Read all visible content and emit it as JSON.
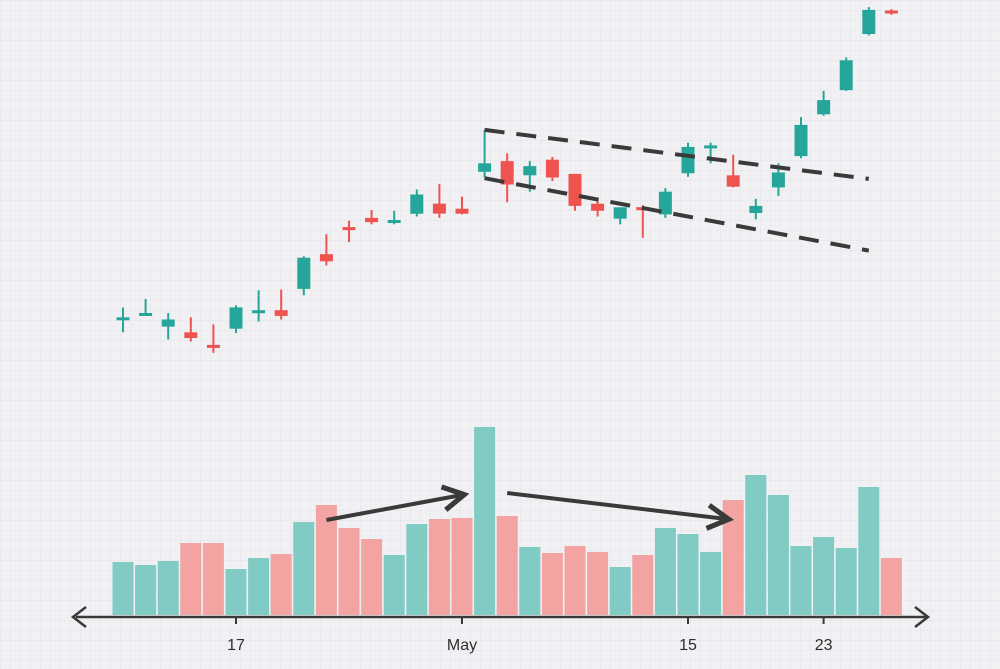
{
  "chart_data": {
    "type": "candlestick",
    "colors": {
      "up": "#26a69a",
      "down": "#ef5350",
      "up_volume": "#80cbc4",
      "down_volume": "#f4a3a3",
      "trendline": "#3a3a3a",
      "axis": "#3a3a3a",
      "grid": "#dcdce4",
      "background": "#f1f1f4"
    },
    "x_ticks": [
      {
        "label": "17",
        "index": 5
      },
      {
        "label": "May",
        "index": 15
      },
      {
        "label": "15",
        "index": 25
      },
      {
        "label": "23",
        "index": 31
      }
    ],
    "candles": [
      {
        "open": 52.4,
        "high": 54.0,
        "low": 50.5,
        "close": 52.4,
        "dir": "up"
      },
      {
        "open": 53.0,
        "high": 55.2,
        "low": 53.0,
        "close": 53.0,
        "dir": "up"
      },
      {
        "open": 51.3,
        "high": 53.2,
        "low": 49.5,
        "close": 52.3,
        "dir": "up"
      },
      {
        "open": 50.5,
        "high": 52.6,
        "low": 49.2,
        "close": 49.7,
        "dir": "down"
      },
      {
        "open": 48.5,
        "high": 51.6,
        "low": 47.6,
        "close": 48.5,
        "dir": "down"
      },
      {
        "open": 51.0,
        "high": 54.3,
        "low": 50.4,
        "close": 54.0,
        "dir": "up"
      },
      {
        "open": 53.4,
        "high": 56.4,
        "low": 52.0,
        "close": 53.4,
        "dir": "up"
      },
      {
        "open": 53.6,
        "high": 56.5,
        "low": 52.3,
        "close": 52.8,
        "dir": "down"
      },
      {
        "open": 56.6,
        "high": 61.2,
        "low": 55.7,
        "close": 61.0,
        "dir": "up"
      },
      {
        "open": 61.5,
        "high": 64.3,
        "low": 59.9,
        "close": 60.5,
        "dir": "down"
      },
      {
        "open": 65.1,
        "high": 66.2,
        "low": 63.2,
        "close": 65.1,
        "dir": "down"
      },
      {
        "open": 66.6,
        "high": 67.7,
        "low": 65.7,
        "close": 66.0,
        "dir": "down"
      },
      {
        "open": 66.1,
        "high": 67.6,
        "low": 65.7,
        "close": 66.1,
        "dir": "up"
      },
      {
        "open": 67.2,
        "high": 70.6,
        "low": 66.8,
        "close": 69.9,
        "dir": "up"
      },
      {
        "open": 68.6,
        "high": 71.4,
        "low": 66.6,
        "close": 67.2,
        "dir": "down"
      },
      {
        "open": 67.9,
        "high": 69.6,
        "low": 67.1,
        "close": 67.2,
        "dir": "down"
      },
      {
        "open": 73.1,
        "high": 79.0,
        "low": 72.3,
        "close": 74.3,
        "dir": "up"
      },
      {
        "open": 74.6,
        "high": 75.7,
        "low": 68.8,
        "close": 71.3,
        "dir": "down"
      },
      {
        "open": 72.6,
        "high": 74.6,
        "low": 70.3,
        "close": 73.9,
        "dir": "up"
      },
      {
        "open": 74.8,
        "high": 75.2,
        "low": 71.8,
        "close": 72.3,
        "dir": "down"
      },
      {
        "open": 72.8,
        "high": 72.8,
        "low": 67.6,
        "close": 68.3,
        "dir": "down"
      },
      {
        "open": 68.6,
        "high": 69.1,
        "low": 66.8,
        "close": 67.6,
        "dir": "down"
      },
      {
        "open": 66.5,
        "high": 68.1,
        "low": 65.7,
        "close": 68.1,
        "dir": "up"
      },
      {
        "open": 67.9,
        "high": 68.4,
        "low": 63.8,
        "close": 67.9,
        "dir": "down"
      },
      {
        "open": 67.1,
        "high": 70.8,
        "low": 66.6,
        "close": 70.3,
        "dir": "up"
      },
      {
        "open": 72.9,
        "high": 77.2,
        "low": 72.4,
        "close": 76.6,
        "dir": "up"
      },
      {
        "open": 76.6,
        "high": 77.2,
        "low": 74.3,
        "close": 76.6,
        "dir": "up"
      },
      {
        "open": 72.6,
        "high": 75.5,
        "low": 70.9,
        "close": 71.0,
        "dir": "down"
      },
      {
        "open": 67.3,
        "high": 69.3,
        "low": 66.4,
        "close": 68.3,
        "dir": "up"
      },
      {
        "open": 70.9,
        "high": 74.3,
        "low": 69.7,
        "close": 73.0,
        "dir": "up"
      },
      {
        "open": 75.3,
        "high": 80.8,
        "low": 75.0,
        "close": 79.7,
        "dir": "up"
      },
      {
        "open": 81.2,
        "high": 84.5,
        "low": 81.0,
        "close": 83.2,
        "dir": "up"
      },
      {
        "open": 84.6,
        "high": 89.2,
        "low": 84.5,
        "close": 88.8,
        "dir": "up"
      },
      {
        "open": 92.5,
        "high": 96.3,
        "low": 92.3,
        "close": 95.9,
        "dir": "up"
      },
      {
        "open": 95.6,
        "high": 96.0,
        "low": 95.2,
        "close": 95.6,
        "dir": "down"
      }
    ],
    "volume": [
      {
        "value": 53,
        "dir": "up"
      },
      {
        "value": 50,
        "dir": "up"
      },
      {
        "value": 54,
        "dir": "up"
      },
      {
        "value": 72,
        "dir": "down"
      },
      {
        "value": 72,
        "dir": "down"
      },
      {
        "value": 46,
        "dir": "up"
      },
      {
        "value": 57,
        "dir": "up"
      },
      {
        "value": 61,
        "dir": "down"
      },
      {
        "value": 93,
        "dir": "up"
      },
      {
        "value": 110,
        "dir": "down"
      },
      {
        "value": 87,
        "dir": "down"
      },
      {
        "value": 76,
        "dir": "down"
      },
      {
        "value": 60,
        "dir": "up"
      },
      {
        "value": 91,
        "dir": "up"
      },
      {
        "value": 96,
        "dir": "down"
      },
      {
        "value": 97,
        "dir": "down"
      },
      {
        "value": 188,
        "dir": "up"
      },
      {
        "value": 99,
        "dir": "down"
      },
      {
        "value": 68,
        "dir": "up"
      },
      {
        "value": 62,
        "dir": "down"
      },
      {
        "value": 69,
        "dir": "down"
      },
      {
        "value": 63,
        "dir": "down"
      },
      {
        "value": 48,
        "dir": "up"
      },
      {
        "value": 60,
        "dir": "down"
      },
      {
        "value": 87,
        "dir": "up"
      },
      {
        "value": 81,
        "dir": "up"
      },
      {
        "value": 63,
        "dir": "up"
      },
      {
        "value": 115,
        "dir": "down"
      },
      {
        "value": 140,
        "dir": "up"
      },
      {
        "value": 120,
        "dir": "up"
      },
      {
        "value": 69,
        "dir": "up"
      },
      {
        "value": 78,
        "dir": "up"
      },
      {
        "value": 67,
        "dir": "up"
      },
      {
        "value": 128,
        "dir": "up"
      },
      {
        "value": 57,
        "dir": "down"
      }
    ],
    "channel_lines": [
      {
        "from": {
          "index": 16,
          "price": 79.0
        },
        "to": {
          "index": 33,
          "price": 72.1
        }
      },
      {
        "from": {
          "index": 16,
          "price": 72.2
        },
        "to": {
          "index": 33,
          "price": 62.0
        }
      }
    ],
    "volume_arrows": [
      {
        "from": {
          "index": 9,
          "volume": 95
        },
        "to": {
          "index": 15,
          "volume": 120
        }
      },
      {
        "from": {
          "index": 17,
          "volume": 122
        },
        "to": {
          "index": 26.7,
          "volume": 96
        }
      }
    ]
  }
}
